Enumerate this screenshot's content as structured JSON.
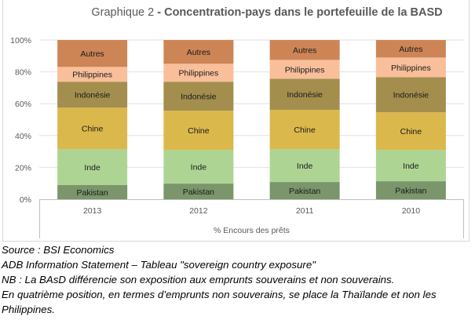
{
  "chart_data": {
    "type": "bar",
    "stacked": true,
    "title_prefix": "Graphique 2",
    "title_main": "- Concentration-pays dans le portefeuille de la BASD",
    "xlabel": "% Encours des prêts",
    "ylabel": "",
    "ylim": [
      0,
      100
    ],
    "yticks": [
      "0%",
      "20%",
      "40%",
      "60%",
      "80%",
      "100%"
    ],
    "categories": [
      "2013",
      "2012",
      "2011",
      "2010"
    ],
    "series": [
      {
        "name": "Pakistan",
        "color": "#7a966a",
        "values": [
          9.0,
          9.8,
          10.8,
          11.3
        ]
      },
      {
        "name": "Inde",
        "color": "#aed494",
        "values": [
          22.5,
          21.2,
          20.7,
          19.7
        ]
      },
      {
        "name": "Chine",
        "color": "#dbb84b",
        "values": [
          26.0,
          24.6,
          24.6,
          23.6
        ]
      },
      {
        "name": "Indonésie",
        "color": "#a38e4e",
        "values": [
          16.3,
          18.2,
          19.6,
          22.1
        ]
      },
      {
        "name": "Philippines",
        "color": "#f8bf9a",
        "values": [
          9.3,
          11.3,
          11.8,
          12.3
        ]
      },
      {
        "name": "Autres",
        "color": "#cd8556",
        "values": [
          16.9,
          14.9,
          12.5,
          11.0
        ]
      }
    ],
    "grid": true,
    "legend": "none (labels inside segments)"
  },
  "notes": [
    "Source : BSI Economics",
    "ADB Information Statement – Tableau \"sovereign country exposure\"",
    "NB : La BAsD différencie son exposition aux emprunts souverains et non souverains.",
    "En quatrième position, en termes d’emprunts non souverains, se place la Thaïlande et non les",
    "Philippines."
  ]
}
